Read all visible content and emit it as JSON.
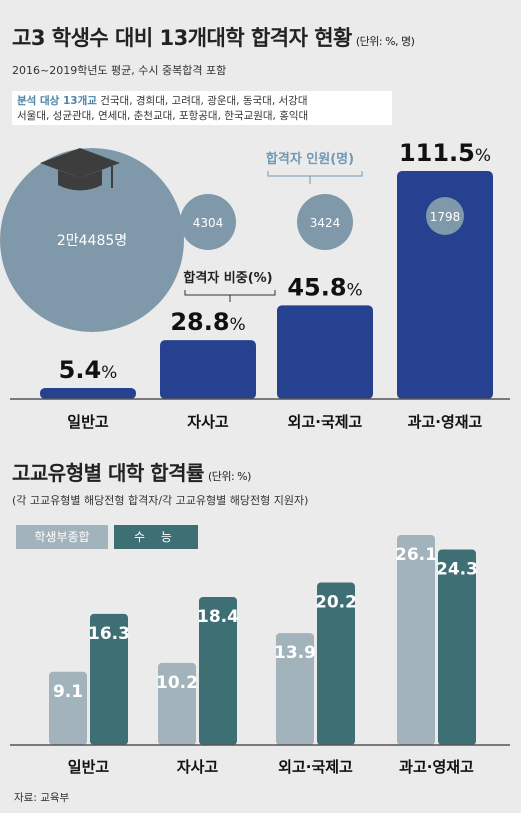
{
  "header": {
    "title": "고3 학생수 대비 13개대학 합격자 현황",
    "unit": "(단위: %, 명)",
    "subtitle": "2016~2019학년도 평균, 수시 중복합격 포함"
  },
  "info": {
    "label": "분석 대상 13개교",
    "line1": "건국대, 경희대, 고려대, 광운대, 동국대, 서강대",
    "line2": "서울대, 성균관대, 연세대, 춘천교대, 포항공대, 한국교원대, 홍익대"
  },
  "colors": {
    "bar_top": "#26418f",
    "circle": "#7f99aa",
    "susi": "#a2b3bb",
    "suneung": "#3e6f74",
    "label_blue": "#6f9ab6"
  },
  "icons": {
    "grad_cap": "graduation-cap-icon"
  },
  "chart_top": {
    "type": "bar",
    "categories": [
      "일반고",
      "자사고",
      "외고·국제고",
      "과고·영재고"
    ],
    "values": [
      5.4,
      28.8,
      45.8,
      111.5
    ],
    "value_labels": [
      "5.4%",
      "28.8%",
      "45.8%",
      "111.5%"
    ],
    "circle_values": [
      "2만4485명",
      "4304",
      "3424",
      "1798"
    ],
    "annot_pass_count": "합격자 인원(명)",
    "annot_pass_ratio": "합격자 비중(%)",
    "ylim": [
      0,
      111.5
    ]
  },
  "chart_bottom": {
    "title": "고교유형별 대학 합격률",
    "unit": "(단위: %)",
    "subtitle": "(각 고교유형별 해당전형 합격자/각 고교유형별 해당전형 지원자)",
    "legend": [
      "학생부종합",
      "수 능"
    ],
    "type": "bar",
    "categories": [
      "일반고",
      "자사고",
      "외고·국제고",
      "과고·영재고"
    ],
    "series": [
      {
        "name": "학생부종합",
        "values": [
          9.1,
          10.2,
          13.9,
          26.1
        ]
      },
      {
        "name": "수 능",
        "values": [
          16.3,
          18.4,
          20.2,
          24.3
        ]
      }
    ],
    "ylim": [
      0,
      26.1
    ]
  },
  "source": "자료: 교육부"
}
